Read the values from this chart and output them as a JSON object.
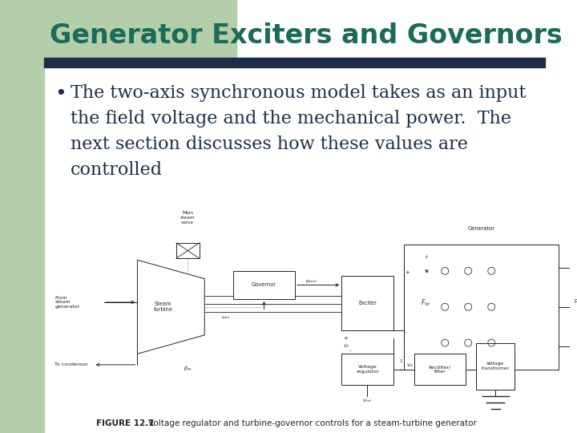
{
  "title": "Generator Exciters and Governors",
  "title_color": "#1a6b5a",
  "title_bg_color": "#b5ceaa",
  "title_bar_color": "#1c2e4a",
  "left_stripe_color": "#b5ceaa",
  "bullet_lines": [
    "The two-axis synchronous model takes as an input",
    "the field voltage and the mechanical power.  The",
    "next section discusses how these values are",
    "controlled"
  ],
  "text_color": "#1c2e4a",
  "bg_color": "#ffffff",
  "figure_caption_bold": "FIGURE 12.1",
  "figure_caption_rest": "    Voltage regulator and turbine-governor controls for a steam-turbine generator",
  "title_fontsize": 24,
  "bullet_fontsize": 16,
  "caption_fontsize": 7.5,
  "diagram_fontsize": 5.0
}
